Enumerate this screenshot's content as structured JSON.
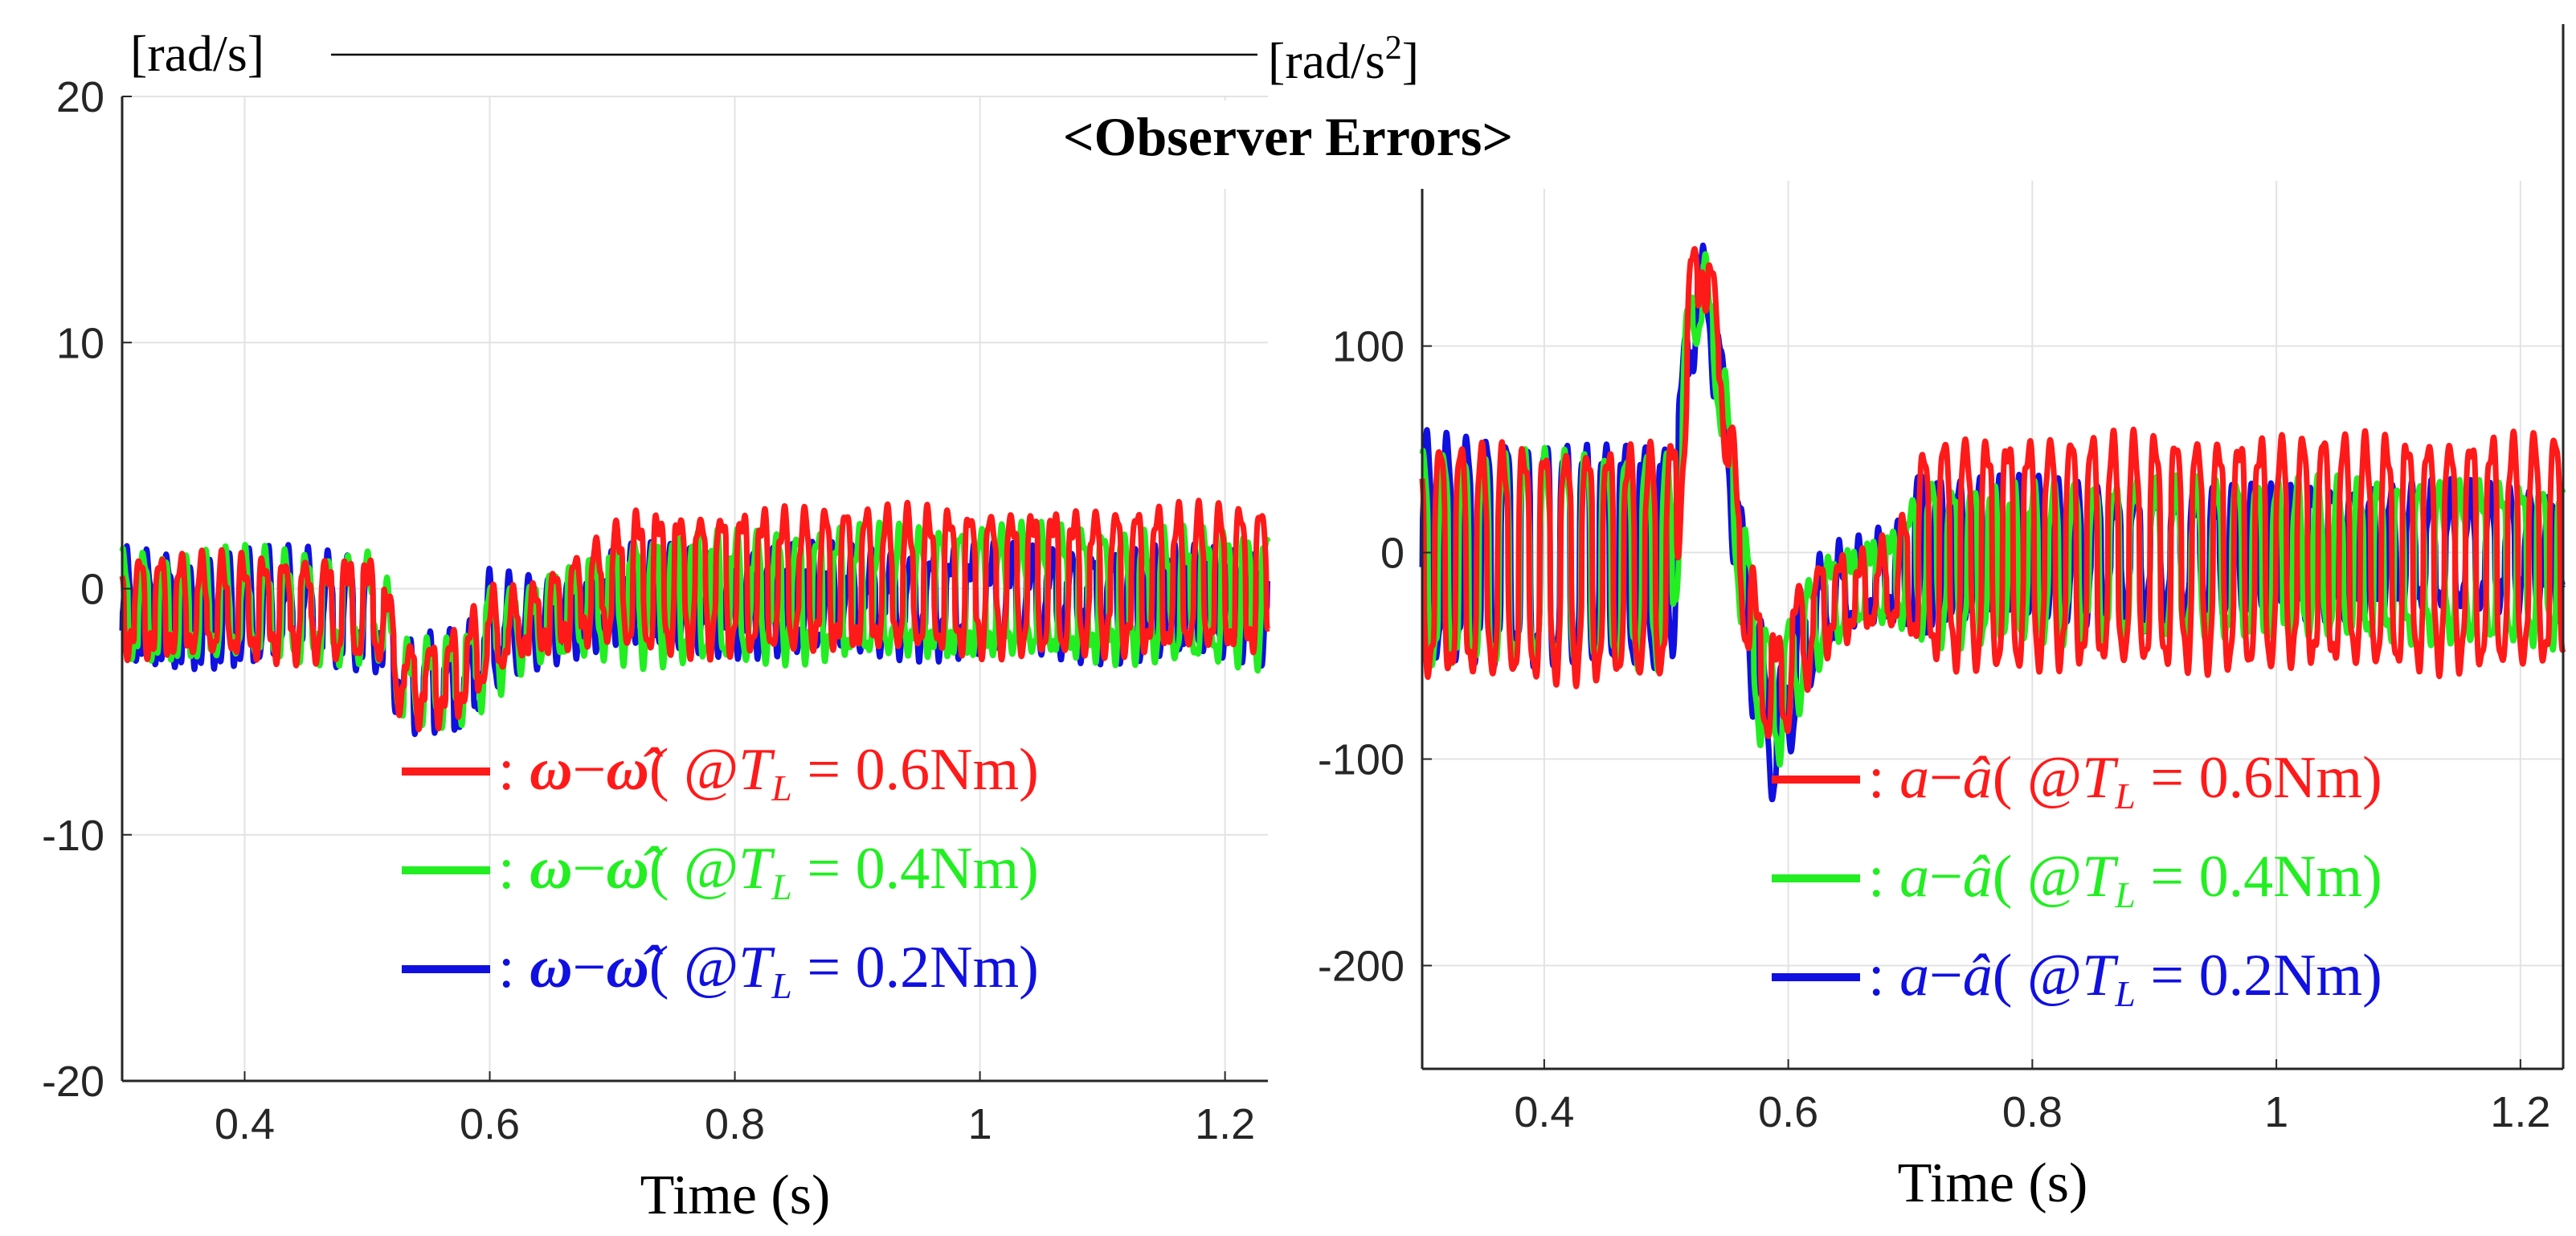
{
  "figure_title": "<Observer Errors>",
  "colors": {
    "red": "#ff1a1a",
    "green": "#22ee22",
    "blue": "#1010e0"
  },
  "chart_data": [
    {
      "type": "line",
      "name": "speed-error",
      "xlabel": "Time (s)",
      "ylabel": "[rad/s]",
      "xlim": [
        0.3,
        1.235
      ],
      "ylim": [
        -20,
        20
      ],
      "xticks": [
        0.4,
        0.6,
        0.8,
        1.0,
        1.2
      ],
      "xtick_labels": [
        "0.4",
        "0.6",
        "0.8",
        "1",
        "1.2"
      ],
      "yticks": [
        -20,
        -10,
        0,
        10,
        20
      ],
      "ytick_labels": [
        "-20",
        "-10",
        "0",
        "10",
        "20"
      ],
      "legend_placement": "bottom-right",
      "series": [
        {
          "name": "ω-ω̂ @ TL = 0.2Nm",
          "color": "blue",
          "freq": 61,
          "disturb": 1.0,
          "profile": [
            [
              0.3,
              -1.0,
              1.8
            ],
            [
              0.51,
              -1.0,
              1.8
            ],
            [
              0.53,
              -4.0,
              1.2
            ],
            [
              0.56,
              -4.0,
              1.5
            ],
            [
              0.58,
              -4.2,
              1.5
            ],
            [
              0.6,
              -2.0,
              2.0
            ],
            [
              0.62,
              -1.5,
              1.5
            ],
            [
              0.66,
              -1.0,
              1.2
            ],
            [
              0.7,
              -0.5,
              1.2
            ],
            [
              0.72,
              -0.5,
              1.5
            ],
            [
              1.235,
              -0.5,
              1.7
            ]
          ]
        },
        {
          "name": "ω-ω̂ @ TL = 0.4Nm",
          "color": "green",
          "freq": 60,
          "disturb": 0.8,
          "profile": [
            [
              0.3,
              -0.8,
              1.8
            ],
            [
              0.51,
              -0.8,
              1.8
            ],
            [
              0.53,
              -4.0,
              1.3
            ],
            [
              0.56,
              -3.8,
              1.3
            ],
            [
              0.58,
              -3.5,
              1.3
            ],
            [
              0.6,
              -2.0,
              2.0
            ],
            [
              0.63,
              -1.5,
              1.2
            ],
            [
              0.67,
              -0.8,
              1.5
            ],
            [
              0.7,
              -0.3,
              2.0
            ],
            [
              0.72,
              -0.3,
              2.2
            ],
            [
              1.235,
              -0.3,
              2.3
            ]
          ]
        },
        {
          "name": "ω-ω̂ @ TL = 0.6Nm",
          "color": "red",
          "freq": 59,
          "disturb": 0.7,
          "profile": [
            [
              0.3,
              -0.8,
              1.7
            ],
            [
              0.51,
              -0.8,
              1.7
            ],
            [
              0.53,
              -3.8,
              1.3
            ],
            [
              0.56,
              -3.8,
              1.3
            ],
            [
              0.58,
              -3.2,
              1.5
            ],
            [
              0.6,
              -2.0,
              1.5
            ],
            [
              0.63,
              -1.5,
              1.0
            ],
            [
              0.67,
              -0.5,
              1.5
            ],
            [
              0.7,
              0.2,
              2.0
            ],
            [
              0.72,
              0.3,
              2.5
            ],
            [
              1.235,
              0.3,
              2.6
            ]
          ]
        }
      ],
      "legend": [
        {
          "color": "red",
          "lhs": "ω",
          "rhs": "ω̂",
          "value": "0.6Nm"
        },
        {
          "color": "green",
          "lhs": "ω",
          "rhs": "ω̂",
          "value": "0.4Nm"
        },
        {
          "color": "blue",
          "lhs": "ω",
          "rhs": "ω̂",
          "value": "0.2Nm"
        }
      ]
    },
    {
      "type": "line",
      "name": "acceleration-error",
      "xlabel": "Time (s)",
      "ylabel": "[rad/s2]",
      "ylabel_base": "[rad/s",
      "ylabel_sup": "2",
      "ylabel_close": "]",
      "xlim": [
        0.3,
        1.235
      ],
      "ylim": [
        -250,
        180
      ],
      "xticks": [
        0.4,
        0.6,
        0.8,
        1.0,
        1.2
      ],
      "xtick_labels": [
        "0.4",
        "0.6",
        "0.8",
        "1",
        "1.2"
      ],
      "yticks": [
        -200,
        -100,
        0,
        100
      ],
      "ytick_labels": [
        "-200",
        "-100",
        "0",
        "100"
      ],
      "legend_placement": "bottom-right",
      "series": [
        {
          "name": "a-â @ TL = 0.2Nm",
          "color": "blue",
          "freq": 62,
          "disturb": 10,
          "profile": [
            [
              0.3,
              0,
              50
            ],
            [
              0.505,
              0,
              50
            ],
            [
              0.52,
              110,
              20
            ],
            [
              0.53,
              135,
              15
            ],
            [
              0.545,
              80,
              20
            ],
            [
              0.56,
              0,
              25
            ],
            [
              0.575,
              -60,
              30
            ],
            [
              0.59,
              -95,
              25
            ],
            [
              0.61,
              -50,
              25
            ],
            [
              0.63,
              -25,
              20
            ],
            [
              0.66,
              -15,
              15
            ],
            [
              0.69,
              -10,
              20
            ],
            [
              0.71,
              0,
              40
            ],
            [
              0.73,
              0,
              30
            ],
            [
              1.235,
              0,
              25
            ]
          ]
        },
        {
          "name": "a-â @ TL = 0.4Nm",
          "color": "green",
          "freq": 60,
          "disturb": 8,
          "profile": [
            [
              0.3,
              -5,
              48
            ],
            [
              0.505,
              -5,
              48
            ],
            [
              0.52,
              110,
              20
            ],
            [
              0.53,
              130,
              15
            ],
            [
              0.545,
              80,
              20
            ],
            [
              0.56,
              0,
              25
            ],
            [
              0.575,
              -55,
              30
            ],
            [
              0.59,
              -75,
              25
            ],
            [
              0.61,
              -45,
              25
            ],
            [
              0.63,
              -25,
              20
            ],
            [
              0.66,
              -15,
              15
            ],
            [
              0.69,
              -10,
              20
            ],
            [
              0.71,
              0,
              35
            ],
            [
              0.73,
              -5,
              35
            ],
            [
              1.235,
              -5,
              35
            ]
          ]
        },
        {
          "name": "a-â @ TL = 0.6Nm",
          "color": "red",
          "freq": 58,
          "disturb": 8,
          "profile": [
            [
              0.3,
              -5,
              52
            ],
            [
              0.505,
              -5,
              52
            ],
            [
              0.52,
              120,
              20
            ],
            [
              0.53,
              145,
              15
            ],
            [
              0.545,
              90,
              20
            ],
            [
              0.56,
              0,
              25
            ],
            [
              0.575,
              -50,
              25
            ],
            [
              0.59,
              -70,
              25
            ],
            [
              0.61,
              -40,
              25
            ],
            [
              0.63,
              -25,
              20
            ],
            [
              0.66,
              -20,
              15
            ],
            [
              0.69,
              -15,
              20
            ],
            [
              0.71,
              0,
              45
            ],
            [
              0.73,
              0,
              52
            ],
            [
              1.235,
              0,
              52
            ]
          ]
        }
      ],
      "legend": [
        {
          "color": "red",
          "lhs": "a",
          "rhs": "â",
          "value": "0.6Nm"
        },
        {
          "color": "green",
          "lhs": "a",
          "rhs": "â",
          "value": "0.4Nm"
        },
        {
          "color": "blue",
          "lhs": "a",
          "rhs": "â",
          "value": "0.2Nm"
        }
      ]
    }
  ],
  "legend_text": {
    "colon": ":",
    "minus": "−",
    "at": "@",
    "T": "T",
    "sub": "L",
    "equals": "="
  }
}
